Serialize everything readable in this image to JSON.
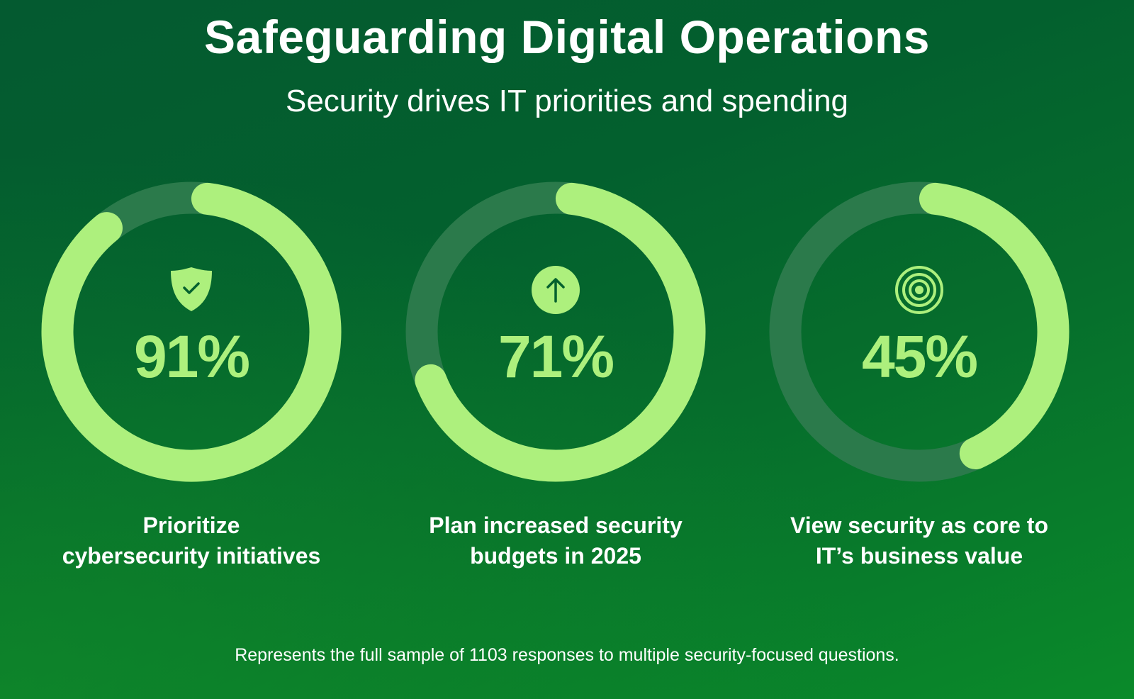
{
  "header": {
    "title": "Safeguarding Digital Operations",
    "subtitle": "Security drives IT priorities and spending"
  },
  "colors": {
    "accent": "#adf07d",
    "track": "#2b7a4b",
    "icon_ink": "#05612e"
  },
  "chart_data": {
    "type": "donut",
    "title": "Safeguarding Digital Operations",
    "subtitle": "Security drives IT priorities and spending",
    "unit": "%",
    "max": 100,
    "items": [
      {
        "value": 91,
        "label": "91%",
        "icon": "shield-check-icon",
        "caption": [
          "Prioritize",
          "cybersecurity initiatives"
        ]
      },
      {
        "value": 71,
        "label": "71%",
        "icon": "arrow-up-circle-icon",
        "caption": [
          "Plan increased security",
          "budgets in 2025"
        ]
      },
      {
        "value": 45,
        "label": "45%",
        "icon": "target-icon",
        "caption": [
          "View security as core to",
          "IT’s business value"
        ]
      }
    ]
  },
  "footnote": "Represents the full sample of 1103 responses to multiple security-focused questions."
}
